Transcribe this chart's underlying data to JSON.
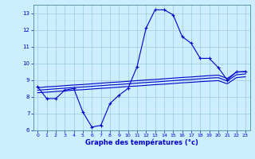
{
  "bg_color": "#cceeff",
  "line_color": "#0000cc",
  "grid_color": "#99ccdd",
  "x_label": "Graphe des températures (°c)",
  "hours": [
    0,
    1,
    2,
    3,
    4,
    5,
    6,
    7,
    8,
    9,
    10,
    11,
    12,
    13,
    14,
    15,
    16,
    17,
    18,
    19,
    20,
    21,
    22,
    23
  ],
  "main_curve": [
    8.6,
    7.9,
    7.9,
    8.4,
    8.5,
    7.1,
    6.2,
    6.3,
    7.6,
    8.1,
    8.5,
    9.8,
    12.1,
    13.2,
    13.2,
    12.9,
    11.6,
    11.2,
    10.3,
    10.3,
    9.75,
    9.0,
    9.5,
    9.5
  ],
  "trend1": [
    8.55,
    8.6,
    8.63,
    8.67,
    8.71,
    8.74,
    8.78,
    8.82,
    8.86,
    8.89,
    8.93,
    8.97,
    9.01,
    9.04,
    9.08,
    9.12,
    9.16,
    9.19,
    9.23,
    9.27,
    9.3,
    9.1,
    9.47,
    9.52
  ],
  "trend2": [
    8.4,
    8.44,
    8.48,
    8.52,
    8.56,
    8.59,
    8.63,
    8.67,
    8.71,
    8.74,
    8.78,
    8.82,
    8.86,
    8.89,
    8.93,
    8.97,
    9.01,
    9.04,
    9.08,
    9.12,
    9.15,
    8.95,
    9.32,
    9.37
  ],
  "trend3": [
    8.25,
    8.28,
    8.32,
    8.36,
    8.4,
    8.43,
    8.47,
    8.51,
    8.54,
    8.58,
    8.62,
    8.65,
    8.69,
    8.73,
    8.76,
    8.8,
    8.84,
    8.87,
    8.91,
    8.94,
    8.97,
    8.78,
    9.15,
    9.2
  ],
  "ylim_min": 6,
  "ylim_max": 13.5,
  "yticks": [
    6,
    7,
    8,
    9,
    10,
    11,
    12,
    13
  ],
  "xlabel_fontsize": 6,
  "tick_fontsize": 4.5
}
